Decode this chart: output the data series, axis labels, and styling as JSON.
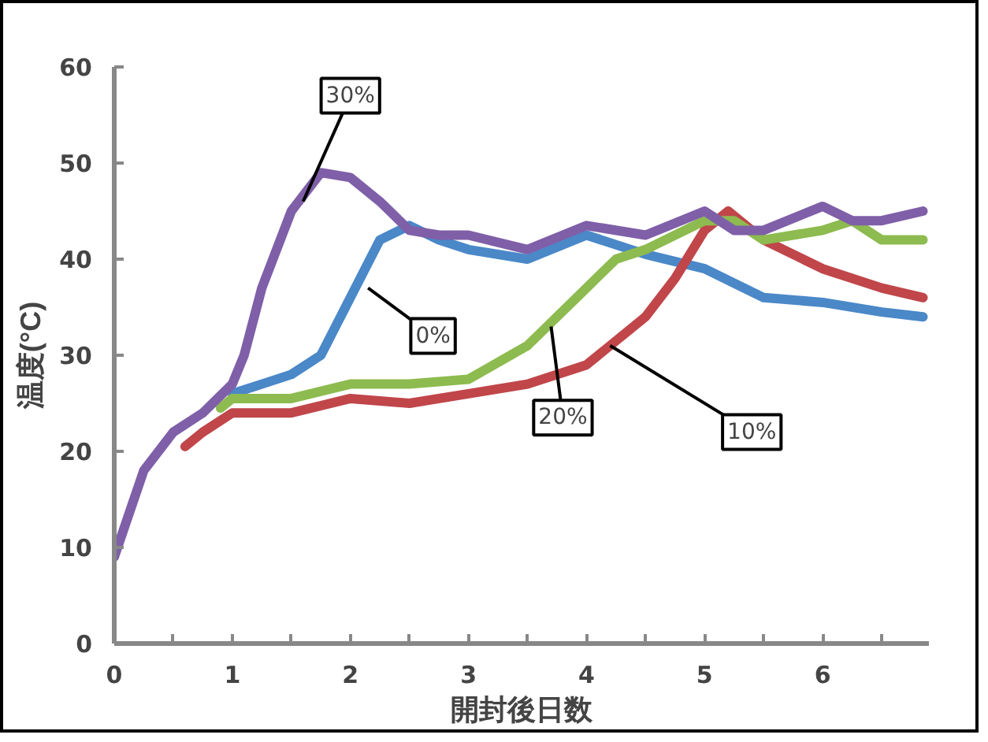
{
  "chart_data": {
    "type": "line",
    "xlabel": "開封後日数",
    "ylabel": "温度(°C)",
    "xlim": [
      0,
      6.9
    ],
    "ylim": [
      0,
      60
    ],
    "xticks": [
      0,
      {
        "value": 0.5,
        "label": null
      },
      1,
      {
        "value": 1.5,
        "label": null
      },
      2,
      {
        "value": 2.5,
        "label": null
      },
      3,
      {
        "value": 3.5,
        "label": null
      },
      4,
      {
        "value": 4.5,
        "label": null
      },
      5,
      {
        "value": 5.5,
        "label": null
      },
      6,
      {
        "value": 6.5,
        "label": null
      }
    ],
    "yticks": [
      0,
      10,
      20,
      30,
      40,
      50,
      60
    ],
    "grid": false,
    "marker": "none",
    "line_style": "solid",
    "series": [
      {
        "color": "#4a88c8",
        "x": [
          1,
          1.25,
          1.5,
          1.75,
          2,
          2.25,
          2.5,
          2.75,
          3,
          3.5,
          4,
          4.5,
          5,
          5.5,
          6,
          6.5,
          6.85
        ],
        "values": [
          26,
          27,
          28,
          30,
          36,
          42,
          43.5,
          42,
          41,
          40,
          42.5,
          40.5,
          39,
          36,
          35.5,
          34.5,
          34
        ]
      },
      {
        "color": "#c0464a",
        "x": [
          0.6,
          0.75,
          1,
          1.5,
          2,
          2.5,
          3,
          3.5,
          4,
          4.5,
          4.75,
          5,
          5.2,
          5.5,
          6,
          6.5,
          6.85
        ],
        "values": [
          20.5,
          22,
          24,
          24,
          25.5,
          25,
          26,
          27,
          29,
          34,
          38,
          43,
          45,
          42,
          39,
          37,
          36
        ]
      },
      {
        "color": "#8dbb4f",
        "x": [
          0.9,
          1,
          1.5,
          2,
          2.5,
          3,
          3.5,
          4,
          4.25,
          4.5,
          5,
          5.25,
          5.5,
          6,
          6.25,
          6.5,
          6.85
        ],
        "values": [
          24.5,
          25.5,
          25.5,
          27,
          27,
          27.5,
          31,
          37,
          40,
          41,
          44,
          44,
          42,
          43,
          44,
          42,
          42
        ]
      },
      {
        "color": "#7f5fa8",
        "x": [
          0,
          0.25,
          0.5,
          0.75,
          1,
          1.1,
          1.25,
          1.5,
          1.75,
          2,
          2.25,
          2.5,
          2.75,
          3,
          3.5,
          4,
          4.5,
          5,
          5.25,
          5.5,
          6,
          6.25,
          6.5,
          6.85
        ],
        "values": [
          9,
          18,
          22,
          24,
          27,
          30,
          37,
          45,
          49,
          48.5,
          46,
          43,
          42.5,
          42.5,
          41,
          43.5,
          42.5,
          45,
          43,
          43,
          45.5,
          44,
          44,
          45
        ]
      }
    ],
    "annotations": [
      {
        "text": "30%",
        "x": 1.6,
        "y": 46
      },
      {
        "text": "0%",
        "x": 2.15,
        "y": 37
      },
      {
        "text": "20%",
        "x": 3.7,
        "y": 33
      },
      {
        "text": "10%",
        "x": 4.2,
        "y": 31
      }
    ]
  }
}
